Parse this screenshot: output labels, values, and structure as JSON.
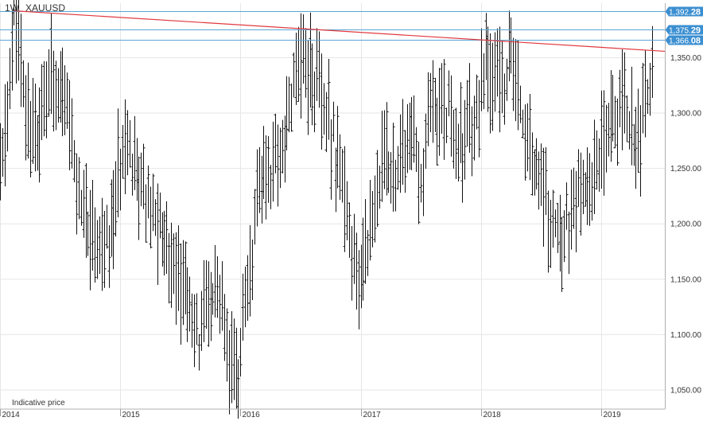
{
  "header": {
    "timeframe": "1W",
    "symbol": "XAUUSD"
  },
  "footer_note": "Indicative price",
  "colors": {
    "bars": "#111111",
    "trendline": "#e0393e",
    "hlines": "#5aa6d6",
    "tag": "#3b8fd1",
    "grid": "#e6e6e6"
  },
  "chart_data": {
    "type": "ohlc",
    "title": "",
    "ylim": [
      1040,
      1405
    ],
    "x_range": [
      2014.0,
      2019.53
    ],
    "x_ticks": [
      {
        "label": "2014",
        "value": 2014.0
      },
      {
        "label": "2015",
        "value": 2015.0
      },
      {
        "label": "2016",
        "value": 2016.0
      },
      {
        "label": "2017",
        "value": 2017.0
      },
      {
        "label": "2018",
        "value": 2018.0
      },
      {
        "label": "2019",
        "value": 2019.0
      }
    ],
    "y_ticks": [
      {
        "label": "1,350.00",
        "value": 1350
      },
      {
        "label": "1,300.00",
        "value": 1300
      },
      {
        "label": "1,250.00",
        "value": 1250
      },
      {
        "label": "1,200.00",
        "value": 1200
      },
      {
        "label": "1,150.00",
        "value": 1150
      },
      {
        "label": "1,100.00",
        "value": 1100
      },
      {
        "label": "1,050.00",
        "value": 1050
      }
    ],
    "horizontal_levels": [
      {
        "main": "1,392.",
        "tail": "28",
        "value": 1392.28
      },
      {
        "main": "1,375.",
        "tail": "29",
        "value": 1375.29
      },
      {
        "main": "1,366.",
        "tail": "08",
        "value": 1366.08
      }
    ],
    "trendline": {
      "from": {
        "x": 2014.12,
        "y": 1392.3
      },
      "to": {
        "x": 2019.42,
        "y": 1356.5
      }
    },
    "anchors": [
      [
        2014.0,
        1240
      ],
      [
        2014.05,
        1290
      ],
      [
        2014.12,
        1390
      ],
      [
        2014.2,
        1310
      ],
      [
        2014.3,
        1280
      ],
      [
        2014.45,
        1340
      ],
      [
        2014.55,
        1300
      ],
      [
        2014.65,
        1230
      ],
      [
        2014.78,
        1180
      ],
      [
        2014.9,
        1175
      ],
      [
        2015.05,
        1295
      ],
      [
        2015.15,
        1230
      ],
      [
        2015.3,
        1200
      ],
      [
        2015.42,
        1180
      ],
      [
        2015.55,
        1130
      ],
      [
        2015.65,
        1100
      ],
      [
        2015.8,
        1140
      ],
      [
        2015.9,
        1070
      ],
      [
        2015.97,
        1060
      ],
      [
        2016.05,
        1120
      ],
      [
        2016.15,
        1230
      ],
      [
        2016.28,
        1260
      ],
      [
        2016.4,
        1300
      ],
      [
        2016.47,
        1350
      ],
      [
        2016.58,
        1340
      ],
      [
        2016.7,
        1300
      ],
      [
        2016.82,
        1260
      ],
      [
        2016.88,
        1200
      ],
      [
        2016.97,
        1140
      ],
      [
        2017.05,
        1190
      ],
      [
        2017.15,
        1240
      ],
      [
        2017.3,
        1260
      ],
      [
        2017.42,
        1270
      ],
      [
        2017.5,
        1240
      ],
      [
        2017.6,
        1300
      ],
      [
        2017.7,
        1310
      ],
      [
        2017.85,
        1270
      ],
      [
        2017.97,
        1310
      ],
      [
        2018.05,
        1340
      ],
      [
        2018.15,
        1330
      ],
      [
        2018.25,
        1340
      ],
      [
        2018.35,
        1300
      ],
      [
        2018.45,
        1250
      ],
      [
        2018.55,
        1210
      ],
      [
        2018.65,
        1190
      ],
      [
        2018.72,
        1210
      ],
      [
        2018.82,
        1220
      ],
      [
        2018.95,
        1250
      ],
      [
        2019.05,
        1300
      ],
      [
        2019.15,
        1310
      ],
      [
        2019.25,
        1290
      ],
      [
        2019.33,
        1285
      ],
      [
        2019.4,
        1330
      ],
      [
        2019.42,
        1350
      ]
    ]
  }
}
